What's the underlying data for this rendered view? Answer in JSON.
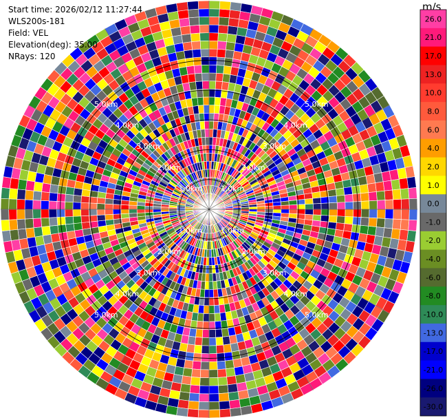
{
  "header": {
    "start_time": "Start time: 2026/02/12 11:27:44",
    "instrument": "WLS200s-181",
    "field": "Field: VEL",
    "elevation": "Elevation(deg): 35.00",
    "nrays": "NRays: 120"
  },
  "chart_data": {
    "type": "polar-ppi",
    "field": "VEL",
    "units": "m/s",
    "nrays": 120,
    "elevation_deg": 35.0,
    "range_rings_km": [
      1.0,
      2.0,
      3.0,
      4.0,
      5.0
    ],
    "ring_labels": [
      "1.0km",
      "2.0km",
      "3.0km",
      "4.0km",
      "5.0km"
    ],
    "max_range_km": 7.0,
    "colorbar": {
      "unit": "m/s",
      "tick_labels": [
        "26.0",
        "21.0",
        "17.0",
        "13.0",
        "10.0",
        "8.0",
        "6.0",
        "4.0",
        "2.0",
        "1.0",
        "0.0",
        "-1.0",
        "-2.0",
        "-4.0",
        "-6.0",
        "-8.0",
        "-10.0",
        "-13.0",
        "-17.0",
        "-21.0",
        "-26.0",
        "-30.0"
      ],
      "bins": [
        {
          "min": 26,
          "max": 30,
          "color": "#ff3ea5"
        },
        {
          "min": 21,
          "max": 26,
          "color": "#ff1a7a"
        },
        {
          "min": 17,
          "max": 21,
          "color": "#ff0000"
        },
        {
          "min": 13,
          "max": 17,
          "color": "#ee2222"
        },
        {
          "min": 10,
          "max": 13,
          "color": "#ff3c2f"
        },
        {
          "min": 8,
          "max": 10,
          "color": "#ff5a3c"
        },
        {
          "min": 6,
          "max": 8,
          "color": "#ff7a50"
        },
        {
          "min": 4,
          "max": 6,
          "color": "#ff9d00"
        },
        {
          "min": 2,
          "max": 4,
          "color": "#ffd700"
        },
        {
          "min": 1,
          "max": 2,
          "color": "#ffff00"
        },
        {
          "min": 0,
          "max": 1,
          "color": "#778899"
        },
        {
          "min": -1,
          "max": 0,
          "color": "#696969"
        },
        {
          "min": -2,
          "max": -1,
          "color": "#9acd32"
        },
        {
          "min": -4,
          "max": -2,
          "color": "#6b8e23"
        },
        {
          "min": -6,
          "max": -4,
          "color": "#556b2f"
        },
        {
          "min": -8,
          "max": -6,
          "color": "#228b22"
        },
        {
          "min": -10,
          "max": -8,
          "color": "#2e8b57"
        },
        {
          "min": -13,
          "max": -10,
          "color": "#4169e1"
        },
        {
          "min": -17,
          "max": -13,
          "color": "#0000cd"
        },
        {
          "min": -21,
          "max": -17,
          "color": "#0000ff"
        },
        {
          "min": -26,
          "max": -21,
          "color": "#000080"
        },
        {
          "min": -30,
          "max": -26,
          "color": "#191970"
        }
      ]
    }
  }
}
